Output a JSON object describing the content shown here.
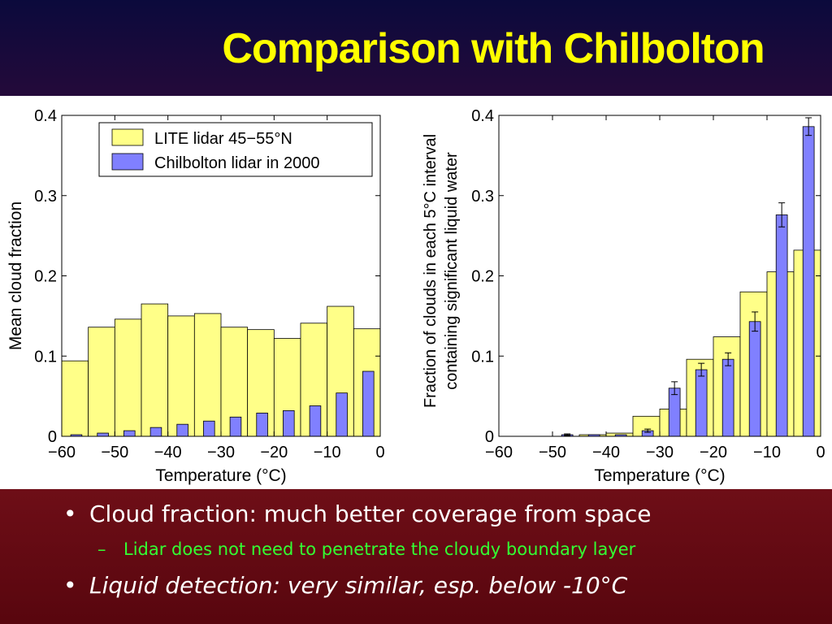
{
  "title": "Comparison with Chilbolton",
  "bullets": [
    {
      "text": "Cloud fraction: much better coverage from space",
      "bullet": "•"
    },
    {
      "text": "Lidar does not need to penetrate the cloudy boundary layer",
      "bullet": "–"
    },
    {
      "text": "Liquid detection: very similar, esp. below -10°C",
      "bullet": "•"
    }
  ],
  "colors": {
    "lite": "#ffff88",
    "chilbolton": "#8080ff",
    "title": "#ffff00",
    "sub_bullet": "#33ff33"
  },
  "chart_data": [
    {
      "type": "bar",
      "xlabel": "Temperature (°C)",
      "ylabel": "Mean cloud fraction",
      "xlim": [
        -60,
        0
      ],
      "ylim": [
        0,
        0.4
      ],
      "xticks": [
        -60,
        -50,
        -40,
        -30,
        -20,
        -10,
        0
      ],
      "xtick_labels": [
        "−60",
        "−50",
        "−40",
        "−30",
        "−20",
        "−10",
        "0"
      ],
      "yticks": [
        0,
        0.1,
        0.2,
        0.3,
        0.4
      ],
      "ytick_labels": [
        "0",
        "0.1",
        "0.2",
        "0.3",
        "0.4"
      ],
      "legend_position": "top-right",
      "series": [
        {
          "name": "LITE lidar 45−55°N",
          "x": [
            -57.5,
            -52.5,
            -47.5,
            -42.5,
            -37.5,
            -32.5,
            -27.5,
            -22.5,
            -17.5,
            -12.5,
            -7.5,
            -2.5
          ],
          "values": [
            0.094,
            0.136,
            0.146,
            0.165,
            0.15,
            0.153,
            0.136,
            0.133,
            0.122,
            0.141,
            0.162,
            0.134
          ]
        },
        {
          "name": "Chilbolton lidar in 2000",
          "x": [
            -57.5,
            -52.5,
            -47.5,
            -42.5,
            -37.5,
            -32.5,
            -27.5,
            -22.5,
            -17.5,
            -12.5,
            -7.5,
            -2.5
          ],
          "values": [
            0.002,
            0.004,
            0.007,
            0.011,
            0.015,
            0.019,
            0.024,
            0.029,
            0.032,
            0.038,
            0.054,
            0.081
          ]
        }
      ]
    },
    {
      "type": "bar",
      "xlabel": "Temperature (°C)",
      "ylabel": "Fraction of clouds in each 5°C interval containing significant liquid water",
      "ylabel_lines": [
        "Fraction of clouds in each 5°C interval",
        "containing significant liquid water"
      ],
      "xlim": [
        -60,
        0
      ],
      "ylim": [
        0,
        0.4
      ],
      "xticks": [
        -60,
        -50,
        -40,
        -30,
        -20,
        -10,
        0
      ],
      "xtick_labels": [
        "−60",
        "−50",
        "−40",
        "−30",
        "−20",
        "−10",
        "0"
      ],
      "yticks": [
        0,
        0.1,
        0.2,
        0.3,
        0.4
      ],
      "ytick_labels": [
        "0",
        "0.1",
        "0.2",
        "0.3",
        "0.4"
      ],
      "series": [
        {
          "name": "LITE lidar 45−55°N",
          "x": [
            -57.5,
            -52.5,
            -47.5,
            -42.5,
            -37.5,
            -32.5,
            -27.5,
            -22.5,
            -17.5,
            -12.5,
            -7.5,
            -2.5
          ],
          "values": [
            0.0,
            0.0,
            0.0,
            0.002,
            0.004,
            0.025,
            0.034,
            0.096,
            0.124,
            0.18,
            0.205,
            0.232
          ]
        },
        {
          "name": "Chilbolton lidar in 2000",
          "x": [
            -57.5,
            -52.5,
            -47.5,
            -42.5,
            -37.5,
            -32.5,
            -27.5,
            -22.5,
            -17.5,
            -12.5,
            -7.5,
            -2.5
          ],
          "values": [
            0.0,
            0.0,
            0.002,
            0.002,
            0.002,
            0.007,
            0.06,
            0.083,
            0.096,
            0.143,
            0.276,
            0.386
          ],
          "errors": [
            0.0,
            0.0,
            0.001,
            0.0,
            0.0,
            0.002,
            0.008,
            0.008,
            0.008,
            0.012,
            0.015,
            0.011
          ]
        }
      ]
    }
  ]
}
